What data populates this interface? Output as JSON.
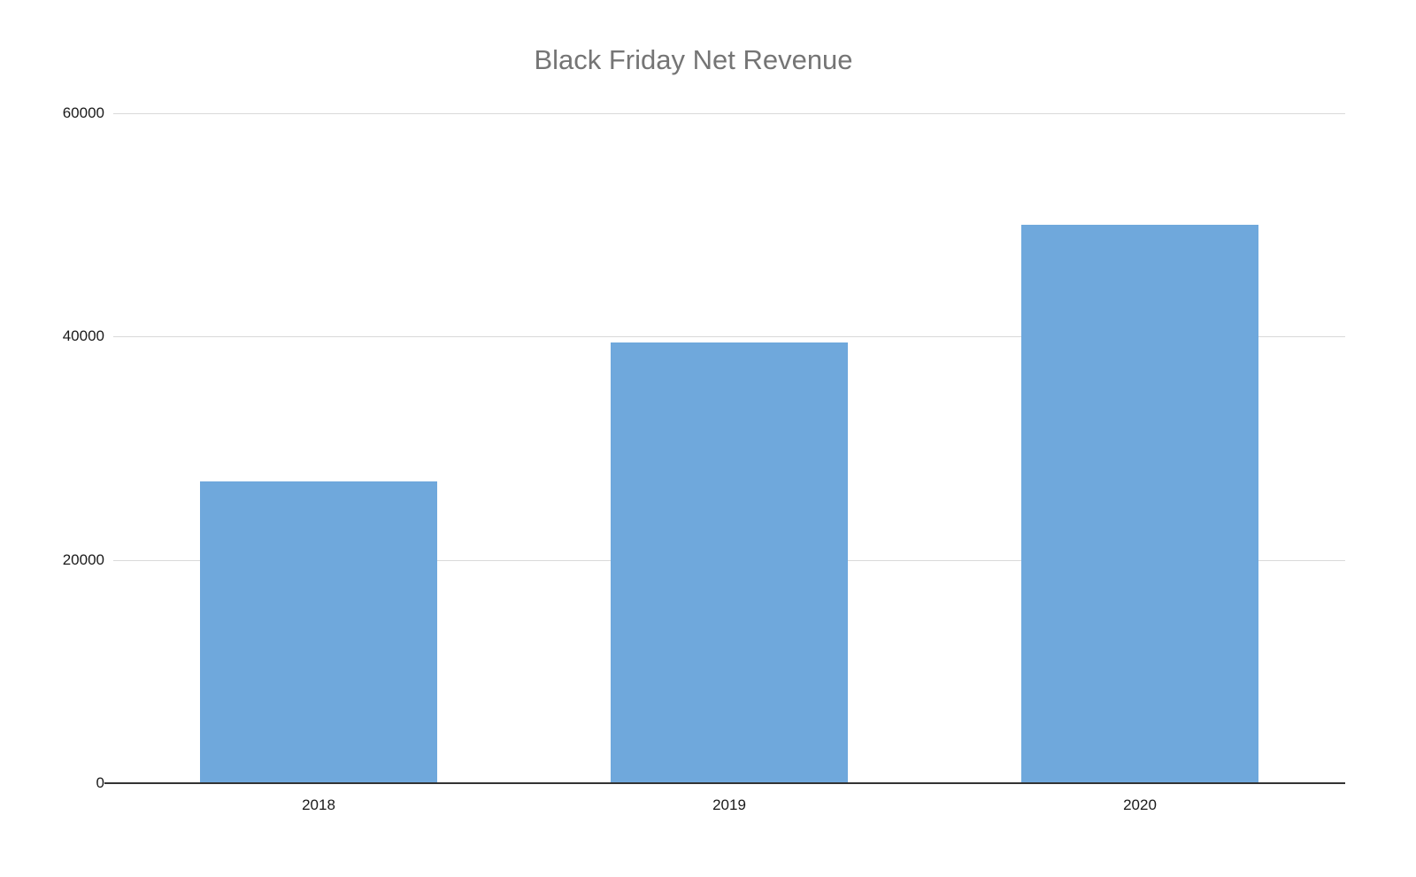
{
  "chart_data": {
    "type": "bar",
    "title": "Black Friday Net Revenue",
    "categories": [
      "2018",
      "2019",
      "2020"
    ],
    "values": [
      27000,
      39500,
      50000
    ],
    "xlabel": "",
    "ylabel": "",
    "ylim": [
      0,
      60000
    ],
    "yticks": [
      0,
      20000,
      40000,
      60000
    ],
    "grid": true,
    "legend": "none",
    "colors": {
      "bar": "#6fa8dc",
      "title": "#757575",
      "gridline": "#d9d9d9",
      "axis_line": "#333333",
      "tick_label": "#1a1a1a",
      "background": "#ffffff"
    }
  }
}
